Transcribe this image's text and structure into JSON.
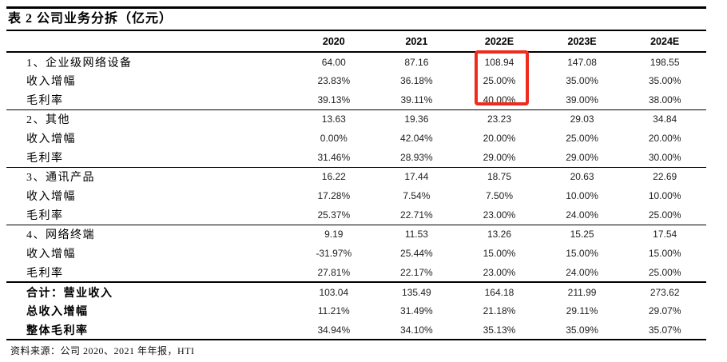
{
  "title": "表 2 公司业务分拆（亿元）",
  "columns": [
    "2020",
    "2021",
    "2022E",
    "2023E",
    "2024E"
  ],
  "sections": [
    {
      "rows": [
        {
          "label": "1、企业级网络设备",
          "values": [
            "64.00",
            "87.16",
            "108.94",
            "147.08",
            "198.55"
          ]
        },
        {
          "label": "收入增幅",
          "values": [
            "23.83%",
            "36.18%",
            "25.00%",
            "35.00%",
            "35.00%"
          ]
        },
        {
          "label": "毛利率",
          "values": [
            "39.13%",
            "39.11%",
            "40.00%",
            "39.00%",
            "38.00%"
          ]
        }
      ]
    },
    {
      "rows": [
        {
          "label": "2、其他",
          "values": [
            "13.63",
            "19.36",
            "23.23",
            "29.03",
            "34.84"
          ]
        },
        {
          "label": "收入增幅",
          "values": [
            "0.00%",
            "42.04%",
            "20.00%",
            "25.00%",
            "20.00%"
          ]
        },
        {
          "label": "毛利率",
          "values": [
            "31.46%",
            "28.93%",
            "29.00%",
            "29.00%",
            "30.00%"
          ]
        }
      ]
    },
    {
      "rows": [
        {
          "label": "3、通讯产品",
          "values": [
            "16.22",
            "17.44",
            "18.75",
            "20.63",
            "22.69"
          ]
        },
        {
          "label": "收入增幅",
          "values": [
            "17.28%",
            "7.54%",
            "7.50%",
            "10.00%",
            "10.00%"
          ]
        },
        {
          "label": "毛利率",
          "values": [
            "25.37%",
            "22.71%",
            "23.00%",
            "24.00%",
            "25.00%"
          ]
        }
      ]
    },
    {
      "rows": [
        {
          "label": "4、网络终端",
          "values": [
            "9.19",
            "11.53",
            "13.26",
            "15.25",
            "17.54"
          ]
        },
        {
          "label": "收入增幅",
          "values": [
            "-31.97%",
            "25.44%",
            "15.00%",
            "15.00%",
            "15.00%"
          ]
        },
        {
          "label": "毛利率",
          "values": [
            "27.81%",
            "22.17%",
            "23.00%",
            "24.00%",
            "25.00%"
          ]
        }
      ]
    }
  ],
  "totals": {
    "rows": [
      {
        "label": "合计：营业收入",
        "values": [
          "103.04",
          "135.49",
          "164.18",
          "211.99",
          "273.62"
        ]
      },
      {
        "label": "总收入增幅",
        "values": [
          "11.21%",
          "31.49%",
          "21.18%",
          "29.11%",
          "29.07%"
        ]
      },
      {
        "label": "整体毛利率",
        "values": [
          "34.94%",
          "34.10%",
          "35.13%",
          "35.09%",
          "35.07%"
        ]
      }
    ]
  },
  "source": "资料来源：公司 2020、2021 年年报，HTI",
  "highlight_color": "#ee2c1e",
  "line_color": "#000000"
}
